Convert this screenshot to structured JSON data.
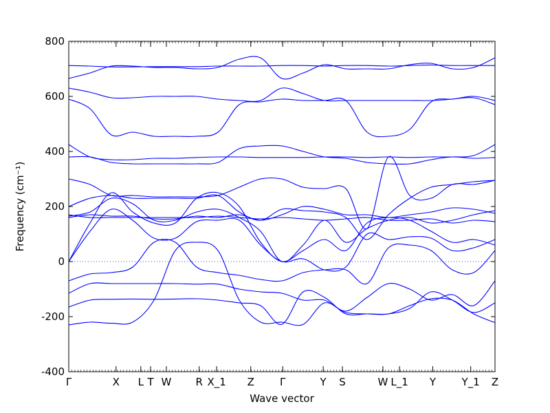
{
  "chart_data": {
    "type": "line",
    "xlabel": "Wave vector",
    "ylabel": "Frequency (cm⁻¹)",
    "ylim": [
      -400,
      800
    ],
    "yticks": [
      -400,
      -200,
      0,
      200,
      400,
      600,
      800
    ],
    "kpoint_labels": [
      "Γ",
      "X",
      "L",
      "T",
      "W",
      "R",
      "X_1",
      "Z",
      "Γ",
      "Y",
      "S",
      "W",
      "L_1",
      "Y",
      "Y_1",
      "Z"
    ],
    "kpoint_positions": [
      0.0,
      0.111,
      0.169,
      0.192,
      0.229,
      0.306,
      0.347,
      0.427,
      0.502,
      0.597,
      0.642,
      0.737,
      0.776,
      0.854,
      0.943,
      1.0
    ],
    "zero_line": true,
    "line_color": "#0000ff",
    "series": [
      {
        "values": [
          -230,
          -220,
          -224,
          -220,
          -140,
          40,
          70,
          40,
          -140,
          -220,
          -220,
          -228,
          -150,
          -185,
          -190,
          -190,
          -160,
          -135,
          -140,
          -190,
          -222
        ]
      },
      {
        "values": [
          -165,
          -140,
          -137,
          -136,
          -137,
          -136,
          -135,
          -140,
          -150,
          -160,
          -228,
          -110,
          -130,
          -190,
          -190,
          -190,
          -170,
          -110,
          -140,
          -185,
          -150
        ]
      },
      {
        "values": [
          -115,
          -80,
          -80,
          -80,
          -80,
          -80,
          -82,
          -82,
          -100,
          -110,
          -115,
          -140,
          -140,
          -180,
          -130,
          -80,
          -100,
          -140,
          -120,
          -160,
          -70
        ]
      },
      {
        "values": [
          -70,
          -45,
          -40,
          -20,
          70,
          70,
          -20,
          -40,
          -50,
          -65,
          -70,
          -40,
          -30,
          -30,
          -80,
          50,
          60,
          40,
          -30,
          -40,
          40
        ]
      },
      {
        "values": [
          0,
          110,
          190,
          150,
          85,
          85,
          145,
          150,
          150,
          60,
          0,
          10,
          -30,
          -20,
          100,
          80,
          90,
          85,
          40,
          50,
          80
        ]
      },
      {
        "values": [
          0,
          140,
          250,
          180,
          140,
          140,
          230,
          250,
          200,
          70,
          0,
          40,
          80,
          40,
          140,
          160,
          150,
          110,
          70,
          80,
          60
        ]
      },
      {
        "values": [
          165,
          180,
          230,
          210,
          150,
          150,
          180,
          190,
          160,
          110,
          0,
          60,
          150,
          70,
          120,
          150,
          160,
          140,
          150,
          170,
          185
        ]
      },
      {
        "values": [
          170,
          160,
          160,
          160,
          160,
          160,
          160,
          165,
          160,
          155,
          160,
          155,
          150,
          155,
          160,
          150,
          150,
          155,
          140,
          150,
          145
        ]
      },
      {
        "values": [
          160,
          170,
          165,
          165,
          155,
          155,
          165,
          160,
          170,
          150,
          170,
          200,
          190,
          170,
          170,
          160,
          170,
          180,
          195,
          190,
          175
        ]
      },
      {
        "values": [
          200,
          230,
          240,
          230,
          230,
          230,
          230,
          240,
          180,
          150,
          190,
          185,
          180,
          160,
          80,
          170,
          230,
          270,
          280,
          290,
          295
        ]
      },
      {
        "values": [
          300,
          280,
          240,
          240,
          235,
          235,
          235,
          240,
          270,
          300,
          300,
          270,
          265,
          265,
          120,
          380,
          240,
          230,
          280,
          280,
          295
        ]
      },
      {
        "values": [
          380,
          380,
          360,
          355,
          355,
          355,
          355,
          360,
          410,
          420,
          420,
          400,
          380,
          375,
          360,
          355,
          355,
          370,
          380,
          375,
          378
        ]
      },
      {
        "values": [
          425,
          380,
          370,
          370,
          375,
          375,
          378,
          380,
          380,
          378,
          378,
          378,
          380,
          380,
          378,
          380,
          378,
          380,
          380,
          385,
          425
        ]
      },
      {
        "values": [
          590,
          555,
          460,
          470,
          455,
          455,
          455,
          470,
          570,
          580,
          590,
          585,
          585,
          585,
          470,
          455,
          480,
          580,
          590,
          595,
          570
        ]
      },
      {
        "values": [
          630,
          615,
          595,
          595,
          600,
          600,
          600,
          590,
          585,
          585,
          630,
          610,
          585,
          585,
          585,
          585,
          585,
          585,
          590,
          600,
          585
        ]
      },
      {
        "values": [
          665,
          685,
          710,
          710,
          705,
          705,
          700,
          705,
          735,
          740,
          665,
          685,
          715,
          700,
          700,
          700,
          715,
          720,
          700,
          705,
          740
        ]
      },
      {
        "values": [
          712,
          710,
          707,
          707,
          708,
          708,
          708,
          710,
          710,
          710,
          712,
          712,
          710,
          712,
          712,
          710,
          712,
          714,
          712,
          712,
          712
        ]
      }
    ]
  }
}
